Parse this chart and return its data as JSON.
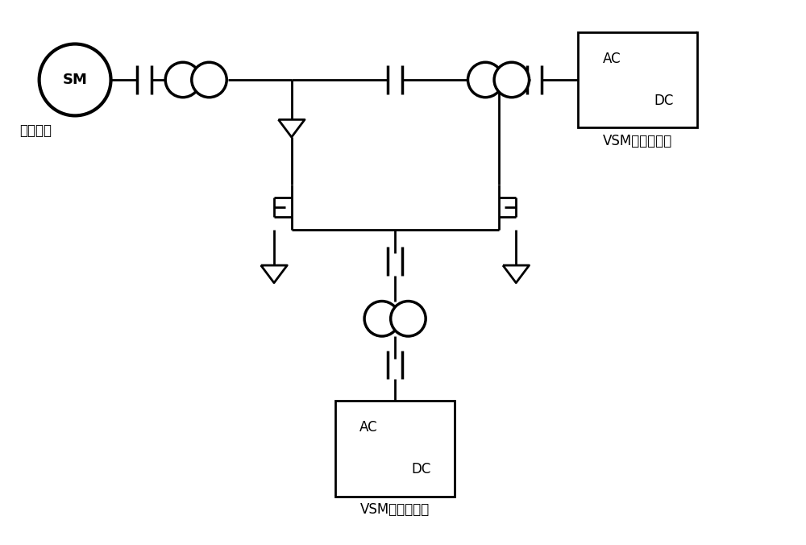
{
  "bg_color": "#ffffff",
  "line_color": "#000000",
  "lw": 2.0,
  "fig_width": 10.0,
  "fig_height": 6.76,
  "label_tongbu": "同步电机",
  "label_vsm_top": "VSM控制换流器",
  "label_vsm_bot": "VSM控制换流器"
}
